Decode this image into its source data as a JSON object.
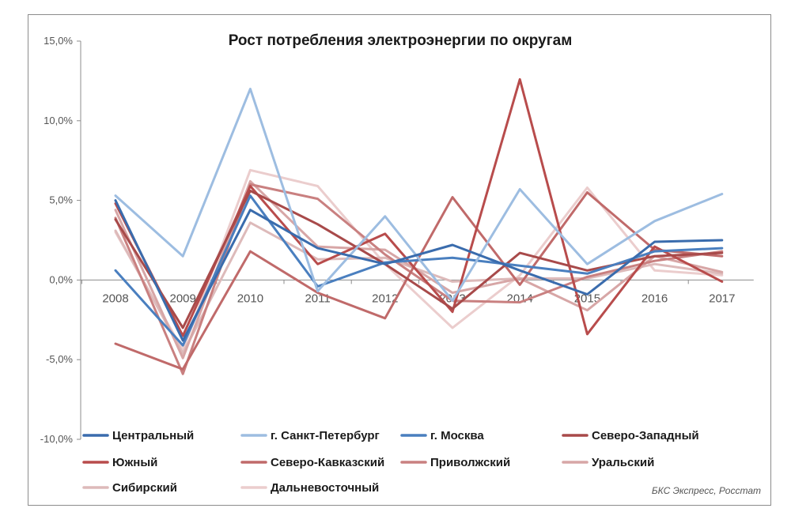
{
  "chart_data": {
    "type": "line",
    "title": "Рост потребления электроэнергии по округам",
    "xlabel": "",
    "ylabel": "",
    "x": [
      "2008",
      "2009",
      "2010",
      "2011",
      "2012",
      "2013",
      "2014",
      "2015",
      "2016",
      "2017"
    ],
    "ylim": [
      -10,
      15
    ],
    "yticks": [
      -10,
      -5,
      0,
      5,
      10,
      15
    ],
    "ytick_labels": [
      "-10,0%",
      "-5,0%",
      "0,0%",
      "5,0%",
      "10,0%",
      "15,0%"
    ],
    "grid": false,
    "legend_position": "bottom",
    "series": [
      {
        "name": "Центральный",
        "color": "#3a6cad",
        "values": [
          5.0,
          -3.8,
          4.4,
          2.0,
          1.0,
          2.2,
          0.6,
          -0.9,
          2.4,
          2.5
        ]
      },
      {
        "name": "г. Санкт-Петербург",
        "color": "#9dbde1",
        "values": [
          5.3,
          1.5,
          12.0,
          -0.7,
          4.0,
          -1.3,
          5.7,
          1.0,
          3.7,
          5.4
        ]
      },
      {
        "name": "г. Москва",
        "color": "#4a7fbf",
        "values": [
          0.6,
          -4.1,
          5.3,
          -0.4,
          1.1,
          1.4,
          0.9,
          0.4,
          1.8,
          2.0
        ]
      },
      {
        "name": "Северо-Западный",
        "color": "#a84a4a",
        "values": [
          3.8,
          -3.0,
          5.6,
          3.5,
          1.0,
          -1.8,
          1.7,
          0.6,
          1.5,
          1.7
        ]
      },
      {
        "name": "Южный",
        "color": "#b84c4c",
        "values": [
          4.8,
          -3.5,
          5.9,
          1.0,
          2.9,
          -2.0,
          12.6,
          -3.4,
          2.1,
          -0.1
        ]
      },
      {
        "name": "Северо-Кавказский",
        "color": "#c06a6a",
        "values": [
          -4.0,
          -5.6,
          1.8,
          -0.8,
          -2.4,
          5.2,
          -0.3,
          5.5,
          1.9,
          1.5
        ]
      },
      {
        "name": "Приволжский",
        "color": "#c98080",
        "values": [
          3.9,
          -5.9,
          6.0,
          5.1,
          1.6,
          -1.3,
          -1.4,
          0.2,
          1.2,
          1.8
        ]
      },
      {
        "name": "Уральский",
        "color": "#d7a6a6",
        "values": [
          4.4,
          -4.9,
          6.2,
          2.1,
          1.9,
          -0.8,
          0.1,
          -1.9,
          1.5,
          0.5
        ]
      },
      {
        "name": "Сибирский",
        "color": "#ddbaba",
        "values": [
          3.1,
          -4.6,
          3.6,
          1.3,
          1.4,
          -0.1,
          0.1,
          0.1,
          1.0,
          0.4
        ]
      },
      {
        "name": "Дальневосточный",
        "color": "#ebcdcd",
        "values": [
          3.0,
          -4.4,
          6.9,
          5.9,
          1.0,
          -3.0,
          0.3,
          5.8,
          0.6,
          0.3
        ]
      }
    ]
  },
  "source": "БКС Экспресс, Росстат"
}
